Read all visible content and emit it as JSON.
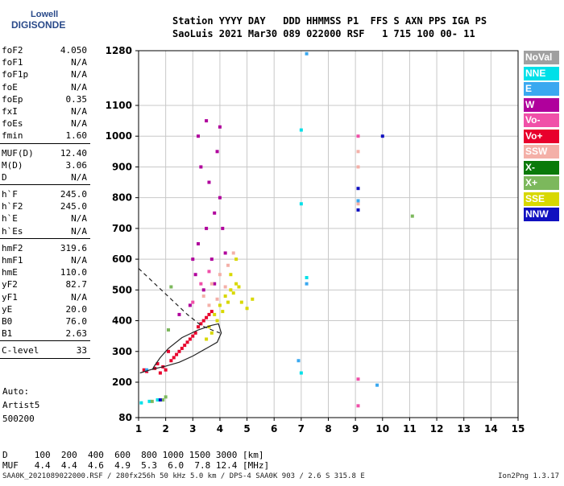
{
  "logo": {
    "line1": "Lowell",
    "line2": "DIGISONDE"
  },
  "header": {
    "line1": "Station YYYY DAY   DDD HHMMSS P1  FFS S AXN PPS IGA PS",
    "line2": "SaoLuis 2021 Mar30 089 022000 RSF   1 715 100 00- 11"
  },
  "params_groups": [
    [
      {
        "name": "foF2",
        "value": "4.050"
      },
      {
        "name": "foF1",
        "value": "N/A"
      },
      {
        "name": "foF1p",
        "value": "N/A"
      },
      {
        "name": "foE",
        "value": "N/A"
      },
      {
        "name": "foEp",
        "value": "0.35"
      },
      {
        "name": "fxI",
        "value": "N/A"
      },
      {
        "name": "foEs",
        "value": "N/A"
      },
      {
        "name": "fmin",
        "value": "1.60"
      }
    ],
    [
      {
        "name": "MUF(D)",
        "value": "12.40"
      },
      {
        "name": "M(D)",
        "value": "3.06"
      },
      {
        "name": "D",
        "value": "N/A"
      }
    ],
    [
      {
        "name": "h`F",
        "value": "245.0"
      },
      {
        "name": "h`F2",
        "value": "245.0"
      },
      {
        "name": "h`E",
        "value": "N/A"
      },
      {
        "name": "h`Es",
        "value": "N/A"
      }
    ],
    [
      {
        "name": "hmF2",
        "value": "319.6"
      },
      {
        "name": "hmF1",
        "value": "N/A"
      },
      {
        "name": "hmE",
        "value": "110.0"
      },
      {
        "name": "yF2",
        "value": "82.7"
      },
      {
        "name": "yF1",
        "value": "N/A"
      },
      {
        "name": "yE",
        "value": "20.0"
      },
      {
        "name": "B0",
        "value": "76.0"
      },
      {
        "name": "B1",
        "value": "2.63"
      }
    ],
    [
      {
        "name": "C-level",
        "value": "33"
      }
    ]
  ],
  "auto_text": [
    "Auto:",
    "Artist5",
    "500200"
  ],
  "legend": [
    {
      "label": "NoVal",
      "color": "#a0a0a0"
    },
    {
      "label": "NNE",
      "color": "#00e0e8"
    },
    {
      "label": "E",
      "color": "#3aa8f0"
    },
    {
      "label": "W",
      "color": "#b0009c"
    },
    {
      "label": "Vo-",
      "color": "#f050a8"
    },
    {
      "label": "Vo+",
      "color": "#e8002c"
    },
    {
      "label": "SSW",
      "color": "#f4b0a8"
    },
    {
      "label": "X-",
      "color": "#0a7a0a"
    },
    {
      "label": "X+",
      "color": "#7cb85c"
    },
    {
      "label": "SSE",
      "color": "#d8d800"
    },
    {
      "label": "NNW",
      "color": "#1010c0"
    }
  ],
  "muf_table": {
    "line1": "D     100  200  400  600  800 1000 1500 3000 [km]",
    "line2": "MUF   4.4  4.4  4.6  4.9  5.3  6.0  7.8 12.4 [MHz]"
  },
  "footer": "SAA0K_2021089022000.RSF / 280fx256h 50 kHz 5.0 km / DPS-4 SAA0K 903 / 2.6 S 315.8 E",
  "footer_right": "Ion2Png 1.3.17",
  "chart_data": {
    "type": "scatter",
    "title": "",
    "xlabel": "",
    "ylabel": "",
    "xlim": [
      1,
      15
    ],
    "ylim": [
      80,
      1280
    ],
    "x_ticks": [
      1,
      2,
      3,
      4,
      5,
      6,
      7,
      8,
      9,
      10,
      11,
      12,
      13,
      14,
      15
    ],
    "y_ticks": [
      80,
      200,
      300,
      400,
      500,
      600,
      700,
      800,
      900,
      1000,
      1100,
      1280
    ],
    "grid": true,
    "legend_position": "right",
    "series": [
      {
        "name": "Vo+",
        "color": "#e8002c",
        "points": [
          [
            1.3,
            235
          ],
          [
            1.6,
            245
          ],
          [
            1.9,
            250
          ],
          [
            2.2,
            270
          ],
          [
            2.4,
            290
          ],
          [
            2.6,
            310
          ],
          [
            2.8,
            330
          ],
          [
            3.0,
            350
          ],
          [
            3.2,
            380
          ],
          [
            3.4,
            400
          ],
          [
            3.6,
            420
          ],
          [
            1.8,
            230
          ],
          [
            2.0,
            240
          ],
          [
            2.5,
            300
          ],
          [
            2.7,
            320
          ],
          [
            3.1,
            360
          ],
          [
            1.7,
            260
          ],
          [
            2.3,
            280
          ],
          [
            2.9,
            340
          ],
          [
            3.3,
            390
          ],
          [
            1.2,
            240
          ],
          [
            2.1,
            300
          ],
          [
            3.5,
            410
          ],
          [
            3.7,
            430
          ]
        ]
      },
      {
        "name": "W",
        "color": "#b0009c",
        "points": [
          [
            3.0,
            600
          ],
          [
            3.2,
            650
          ],
          [
            3.5,
            700
          ],
          [
            3.8,
            750
          ],
          [
            4.0,
            800
          ],
          [
            3.3,
            900
          ],
          [
            3.6,
            850
          ],
          [
            3.1,
            550
          ],
          [
            3.9,
            950
          ],
          [
            4.1,
            700
          ],
          [
            3.4,
            500
          ],
          [
            3.7,
            600
          ],
          [
            2.9,
            450
          ],
          [
            3.2,
            1000
          ],
          [
            4.2,
            620
          ],
          [
            2.5,
            420
          ],
          [
            3.5,
            1050
          ],
          [
            4.0,
            1030
          ],
          [
            3.8,
            520
          ]
        ]
      },
      {
        "name": "SSE",
        "color": "#d8d800",
        "points": [
          [
            3.6,
            380
          ],
          [
            3.8,
            420
          ],
          [
            4.0,
            450
          ],
          [
            4.2,
            480
          ],
          [
            4.4,
            500
          ],
          [
            4.6,
            520
          ],
          [
            4.8,
            460
          ],
          [
            5.0,
            440
          ],
          [
            3.9,
            400
          ],
          [
            4.1,
            430
          ],
          [
            4.3,
            460
          ],
          [
            4.5,
            490
          ],
          [
            4.7,
            510
          ],
          [
            5.2,
            470
          ],
          [
            3.7,
            360
          ],
          [
            4.4,
            550
          ],
          [
            4.6,
            600
          ],
          [
            3.5,
            340
          ]
        ]
      },
      {
        "name": "SSW",
        "color": "#f4b0a8",
        "points": [
          [
            3.4,
            480
          ],
          [
            3.7,
            520
          ],
          [
            4.0,
            550
          ],
          [
            4.3,
            580
          ],
          [
            4.5,
            620
          ],
          [
            3.9,
            470
          ],
          [
            4.2,
            510
          ],
          [
            3.6,
            450
          ],
          [
            9.1,
            950
          ],
          [
            9.1,
            900
          ],
          [
            9.1,
            780
          ]
        ]
      },
      {
        "name": "NNE",
        "color": "#00e0e8",
        "points": [
          [
            1.1,
            130
          ],
          [
            1.4,
            135
          ],
          [
            1.7,
            140
          ],
          [
            7.0,
            230
          ],
          [
            7.0,
            1020
          ],
          [
            7.2,
            540
          ],
          [
            7.0,
            780
          ]
        ]
      },
      {
        "name": "E",
        "color": "#3aa8f0",
        "points": [
          [
            7.2,
            1270
          ],
          [
            7.2,
            520
          ],
          [
            9.8,
            190
          ],
          [
            9.1,
            790
          ],
          [
            1.3,
            240
          ],
          [
            6.9,
            270
          ]
        ]
      },
      {
        "name": "X+",
        "color": "#7cb85c",
        "points": [
          [
            1.5,
            135
          ],
          [
            1.9,
            140
          ],
          [
            2.0,
            150
          ],
          [
            11.1,
            740
          ],
          [
            2.1,
            370
          ],
          [
            2.2,
            510
          ]
        ]
      },
      {
        "name": "NNW",
        "color": "#1010c0",
        "points": [
          [
            9.1,
            760
          ],
          [
            9.1,
            830
          ],
          [
            10.0,
            1000
          ],
          [
            1.8,
            140
          ]
        ]
      },
      {
        "name": "Vo-",
        "color": "#f050a8",
        "points": [
          [
            3.0,
            460
          ],
          [
            3.3,
            520
          ],
          [
            3.6,
            560
          ],
          [
            9.1,
            1000
          ],
          [
            9.1,
            210
          ],
          [
            9.1,
            120
          ]
        ]
      }
    ],
    "profile_lines": [
      {
        "style": "solid",
        "points": [
          [
            1.05,
            230
          ],
          [
            1.5,
            242
          ],
          [
            2.0,
            252
          ],
          [
            2.5,
            265
          ],
          [
            3.0,
            285
          ],
          [
            3.5,
            310
          ],
          [
            3.9,
            330
          ],
          [
            4.05,
            360
          ],
          [
            3.95,
            390
          ],
          [
            3.7,
            385
          ],
          [
            3.2,
            370
          ],
          [
            2.6,
            345
          ],
          [
            2.1,
            310
          ],
          [
            1.8,
            280
          ],
          [
            1.6,
            255
          ],
          [
            1.5,
            240
          ]
        ]
      },
      {
        "style": "dashed",
        "points": [
          [
            1.0,
            570
          ],
          [
            1.6,
            520
          ],
          [
            2.2,
            470
          ],
          [
            2.8,
            420
          ],
          [
            3.3,
            385
          ],
          [
            3.7,
            370
          ],
          [
            4.0,
            360
          ]
        ]
      }
    ]
  }
}
